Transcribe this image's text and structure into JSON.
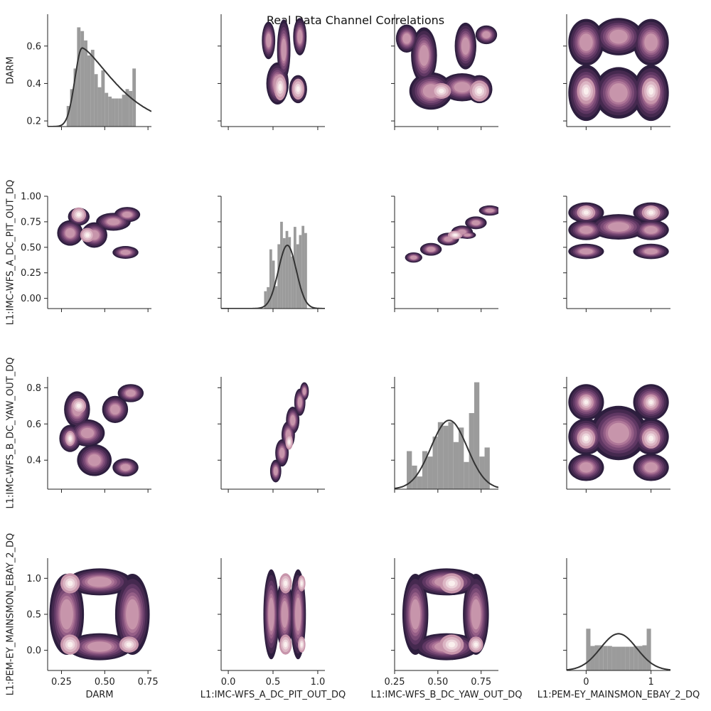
{
  "chart_data": {
    "type": "pairplot",
    "title": "Real Data Channel Correlations",
    "variables": [
      "DARM",
      "L1:IMC-WFS_A_DC_PIT_OUT_DQ",
      "L1:IMC-WFS_B_DC_YAW_OUT_DQ",
      "L1:PEM-EY_MAINSMON_EBAY_2_DQ"
    ],
    "axes": [
      {
        "xlim": [
          0.17,
          0.77
        ],
        "xticks": [
          0.25,
          0.5,
          0.75
        ],
        "xticklabels": [
          "0.25",
          "0.50",
          "0.75"
        ],
        "ylim": [
          0.17,
          0.77
        ],
        "yticks": [
          0.2,
          0.4,
          0.6
        ],
        "yticklabels": [
          "0.2",
          "0.4",
          "0.6"
        ]
      },
      {
        "xlim": [
          -0.08,
          1.08
        ],
        "xticks": [
          0.0,
          0.5,
          1.0
        ],
        "xticklabels": [
          "0.0",
          "0.5",
          "1.0"
        ],
        "ylim": [
          -0.1,
          1.0
        ],
        "yticks": [
          0.0,
          0.25,
          0.5,
          0.75,
          1.0
        ],
        "yticklabels": [
          "0.00",
          "0.25",
          "0.50",
          "0.75",
          "1.00"
        ]
      },
      {
        "xlim": [
          0.25,
          0.85
        ],
        "xticks": [
          0.25,
          0.5,
          0.75
        ],
        "xticklabels": [
          "0.25",
          "0.50",
          "0.75"
        ],
        "ylim": [
          0.24,
          0.86
        ],
        "yticks": [
          0.4,
          0.6,
          0.8
        ],
        "yticklabels": [
          "0.4",
          "0.6",
          "0.8"
        ]
      },
      {
        "xlim": [
          -0.3,
          1.3
        ],
        "xticks": [
          0,
          1
        ],
        "xticklabels": [
          "0",
          "1"
        ],
        "ylim": [
          -0.28,
          1.28
        ],
        "yticks": [
          0.0,
          0.5,
          1.0
        ],
        "yticklabels": [
          "0.0",
          "0.5",
          "1.0"
        ]
      }
    ],
    "histograms": [
      {
        "bins": [
          0.28,
          0.3,
          0.32,
          0.34,
          0.36,
          0.38,
          0.4,
          0.42,
          0.44,
          0.46,
          0.48,
          0.5,
          0.52,
          0.54,
          0.56,
          0.58,
          0.6,
          0.62,
          0.64,
          0.66,
          0.68
        ],
        "counts": [
          0.28,
          0.37,
          0.48,
          0.7,
          0.68,
          0.63,
          0.55,
          0.58,
          0.45,
          0.38,
          0.47,
          0.35,
          0.33,
          0.32,
          0.32,
          0.32,
          0.34,
          0.37,
          0.36,
          0.48
        ]
      },
      {
        "bins": [
          0.4,
          0.43,
          0.46,
          0.49,
          0.52,
          0.55,
          0.58,
          0.61,
          0.64,
          0.67,
          0.7,
          0.73,
          0.76,
          0.79,
          0.82,
          0.85,
          0.88
        ],
        "counts": [
          0.07,
          0.11,
          0.48,
          0.37,
          0.12,
          0.53,
          0.75,
          0.59,
          0.66,
          0.6,
          0.41,
          0.7,
          0.53,
          0.62,
          0.71,
          0.64
        ]
      },
      {
        "bins": [
          0.32,
          0.35,
          0.38,
          0.41,
          0.44,
          0.47,
          0.5,
          0.53,
          0.56,
          0.59,
          0.62,
          0.65,
          0.68,
          0.71,
          0.74,
          0.77,
          0.8
        ],
        "counts": [
          0.45,
          0.37,
          0.31,
          0.45,
          0.42,
          0.53,
          0.61,
          0.59,
          0.61,
          0.5,
          0.58,
          0.39,
          0.66,
          0.83,
          0.42,
          0.47
        ]
      },
      {
        "bins": [
          0.0,
          0.0667,
          0.1333,
          0.2,
          0.2667,
          0.3333,
          0.4,
          0.4667,
          0.5333,
          0.6,
          0.6667,
          0.7333,
          0.8,
          0.8667,
          0.9333,
          1.0
        ],
        "counts": [
          0.3,
          0.06,
          0.07,
          0.07,
          0.06,
          0.06,
          0.05,
          0.05,
          0.05,
          0.05,
          0.05,
          0.06,
          0.06,
          0.07,
          0.3
        ]
      }
    ],
    "density_curves": [
      {
        "type": "skewed",
        "peak_x": 0.37,
        "peak_y": 0.59,
        "rise": 0.06,
        "tail": 0.28,
        "base": 0.17
      },
      {
        "type": "gaussian",
        "mean": 0.66,
        "sd": 0.1,
        "peak_y": 0.52,
        "base": -0.1
      },
      {
        "type": "gaussian",
        "mean": 0.565,
        "sd": 0.105,
        "peak_y": 0.62,
        "base": 0.24
      },
      {
        "type": "gaussian",
        "mean": 0.5,
        "sd": 0.28,
        "peak_y": 0.23,
        "base": -0.28
      }
    ],
    "kde_blobs": [
      {
        "row": 0,
        "col": 1,
        "blobs": [
          [
            0.45,
            0.63,
            0.06,
            0.08
          ],
          [
            0.62,
            0.58,
            0.06,
            0.13
          ],
          [
            0.55,
            0.4,
            0.1,
            0.09
          ],
          [
            0.78,
            0.37,
            0.08,
            0.06
          ],
          [
            0.8,
            0.65,
            0.06,
            0.08
          ]
        ],
        "peaks": [
          [
            0.78,
            0.37,
            0.05,
            0.04
          ],
          [
            0.58,
            0.38,
            0.05,
            0.05
          ]
        ]
      },
      {
        "row": 0,
        "col": 2,
        "blobs": [
          [
            0.32,
            0.64,
            0.05,
            0.06
          ],
          [
            0.42,
            0.55,
            0.06,
            0.12
          ],
          [
            0.46,
            0.36,
            0.1,
            0.08
          ],
          [
            0.64,
            0.38,
            0.1,
            0.06
          ],
          [
            0.74,
            0.37,
            0.06,
            0.06
          ],
          [
            0.66,
            0.6,
            0.05,
            0.1
          ],
          [
            0.78,
            0.66,
            0.05,
            0.04
          ]
        ],
        "peaks": [
          [
            0.74,
            0.36,
            0.04,
            0.04
          ],
          [
            0.52,
            0.36,
            0.04,
            0.03
          ]
        ]
      },
      {
        "row": 0,
        "col": 3,
        "blobs": [
          [
            0.0,
            0.35,
            0.22,
            0.12
          ],
          [
            1.0,
            0.35,
            0.22,
            0.12
          ],
          [
            0.0,
            0.62,
            0.22,
            0.1
          ],
          [
            1.0,
            0.62,
            0.22,
            0.1
          ],
          [
            0.5,
            0.35,
            0.3,
            0.11
          ],
          [
            0.5,
            0.65,
            0.3,
            0.08
          ]
        ],
        "peaks": [
          [
            0.0,
            0.36,
            0.1,
            0.05
          ],
          [
            1.0,
            0.36,
            0.1,
            0.05
          ]
        ]
      },
      {
        "row": 1,
        "col": 0,
        "blobs": [
          [
            0.3,
            0.64,
            0.06,
            0.1
          ],
          [
            0.35,
            0.8,
            0.05,
            0.07
          ],
          [
            0.44,
            0.62,
            0.06,
            0.1
          ],
          [
            0.55,
            0.75,
            0.08,
            0.07
          ],
          [
            0.63,
            0.82,
            0.06,
            0.06
          ],
          [
            0.62,
            0.45,
            0.06,
            0.05
          ]
        ],
        "peaks": [
          [
            0.35,
            0.82,
            0.03,
            0.05
          ],
          [
            0.4,
            0.62,
            0.03,
            0.05
          ]
        ]
      },
      {
        "row": 1,
        "col": 2,
        "blobs": [
          [
            0.36,
            0.4,
            0.04,
            0.04
          ],
          [
            0.46,
            0.48,
            0.05,
            0.05
          ],
          [
            0.56,
            0.58,
            0.05,
            0.05
          ],
          [
            0.64,
            0.65,
            0.05,
            0.05
          ],
          [
            0.72,
            0.74,
            0.05,
            0.05
          ],
          [
            0.8,
            0.86,
            0.05,
            0.04
          ],
          [
            0.67,
            0.62,
            0.04,
            0.03
          ]
        ],
        "peaks": [
          [
            0.6,
            0.62,
            0.03,
            0.03
          ]
        ]
      },
      {
        "row": 1,
        "col": 3,
        "blobs": [
          [
            0.0,
            0.84,
            0.22,
            0.08
          ],
          [
            1.0,
            0.84,
            0.22,
            0.08
          ],
          [
            0.0,
            0.67,
            0.22,
            0.08
          ],
          [
            1.0,
            0.67,
            0.22,
            0.08
          ],
          [
            0.0,
            0.46,
            0.22,
            0.06
          ],
          [
            1.0,
            0.46,
            0.22,
            0.06
          ],
          [
            0.5,
            0.7,
            0.35,
            0.1
          ]
        ],
        "peaks": [
          [
            0.0,
            0.84,
            0.1,
            0.05
          ],
          [
            1.0,
            0.84,
            0.1,
            0.05
          ]
        ]
      },
      {
        "row": 2,
        "col": 0,
        "blobs": [
          [
            0.34,
            0.68,
            0.06,
            0.08
          ],
          [
            0.3,
            0.52,
            0.05,
            0.06
          ],
          [
            0.4,
            0.55,
            0.08,
            0.06
          ],
          [
            0.44,
            0.4,
            0.08,
            0.07
          ],
          [
            0.62,
            0.36,
            0.06,
            0.04
          ],
          [
            0.56,
            0.68,
            0.06,
            0.06
          ],
          [
            0.65,
            0.77,
            0.06,
            0.04
          ]
        ],
        "peaks": [
          [
            0.35,
            0.7,
            0.03,
            0.03
          ],
          [
            0.3,
            0.52,
            0.02,
            0.03
          ]
        ]
      },
      {
        "row": 2,
        "col": 1,
        "blobs": [
          [
            0.53,
            0.34,
            0.05,
            0.05
          ],
          [
            0.6,
            0.44,
            0.06,
            0.06
          ],
          [
            0.67,
            0.54,
            0.06,
            0.06
          ],
          [
            0.72,
            0.62,
            0.06,
            0.06
          ],
          [
            0.8,
            0.72,
            0.05,
            0.06
          ],
          [
            0.85,
            0.78,
            0.04,
            0.04
          ]
        ],
        "peaks": [
          [
            0.68,
            0.5,
            0.03,
            0.03
          ]
        ]
      },
      {
        "row": 2,
        "col": 3,
        "blobs": [
          [
            0.0,
            0.72,
            0.22,
            0.08
          ],
          [
            1.0,
            0.72,
            0.22,
            0.08
          ],
          [
            0.0,
            0.53,
            0.22,
            0.08
          ],
          [
            1.0,
            0.53,
            0.22,
            0.08
          ],
          [
            0.0,
            0.36,
            0.22,
            0.06
          ],
          [
            1.0,
            0.36,
            0.22,
            0.06
          ],
          [
            0.5,
            0.55,
            0.35,
            0.12
          ]
        ],
        "peaks": [
          [
            0.0,
            0.52,
            0.1,
            0.04
          ],
          [
            1.0,
            0.52,
            0.1,
            0.04
          ],
          [
            0.0,
            0.72,
            0.08,
            0.03
          ],
          [
            1.0,
            0.72,
            0.08,
            0.03
          ]
        ]
      },
      {
        "row": 3,
        "col": 0,
        "blobs": [
          [
            0.28,
            0.5,
            0.08,
            0.45
          ],
          [
            0.66,
            0.5,
            0.08,
            0.45
          ],
          [
            0.47,
            0.05,
            0.15,
            0.15
          ],
          [
            0.47,
            0.95,
            0.15,
            0.15
          ]
        ],
        "peaks": [
          [
            0.3,
            0.93,
            0.04,
            0.1
          ],
          [
            0.3,
            0.08,
            0.04,
            0.1
          ],
          [
            0.64,
            0.08,
            0.04,
            0.08
          ]
        ]
      },
      {
        "row": 3,
        "col": 1,
        "blobs": [
          [
            0.48,
            0.5,
            0.07,
            0.5
          ],
          [
            0.78,
            0.5,
            0.07,
            0.5
          ],
          [
            0.63,
            0.5,
            0.08,
            0.4
          ]
        ],
        "peaks": [
          [
            0.64,
            0.93,
            0.05,
            0.1
          ],
          [
            0.64,
            0.08,
            0.05,
            0.1
          ],
          [
            0.82,
            0.93,
            0.03,
            0.08
          ],
          [
            0.82,
            0.08,
            0.03,
            0.08
          ]
        ]
      },
      {
        "row": 3,
        "col": 2,
        "blobs": [
          [
            0.37,
            0.5,
            0.06,
            0.45
          ],
          [
            0.72,
            0.5,
            0.06,
            0.45
          ],
          [
            0.55,
            0.05,
            0.15,
            0.15
          ],
          [
            0.55,
            0.95,
            0.15,
            0.15
          ]
        ],
        "peaks": [
          [
            0.58,
            0.93,
            0.05,
            0.1
          ],
          [
            0.58,
            0.08,
            0.05,
            0.1
          ],
          [
            0.72,
            0.08,
            0.03,
            0.08
          ]
        ]
      }
    ],
    "colors": {
      "histogram": "#9b9b9b",
      "density_curve": "#333333",
      "contour_palette": [
        "#2d1e3e",
        "#45294f",
        "#5f3763",
        "#7a4a75",
        "#965f87",
        "#af7798",
        "#c795ab",
        "#dcb6c4",
        "#edd6dc",
        "#faf0ee"
      ]
    }
  }
}
